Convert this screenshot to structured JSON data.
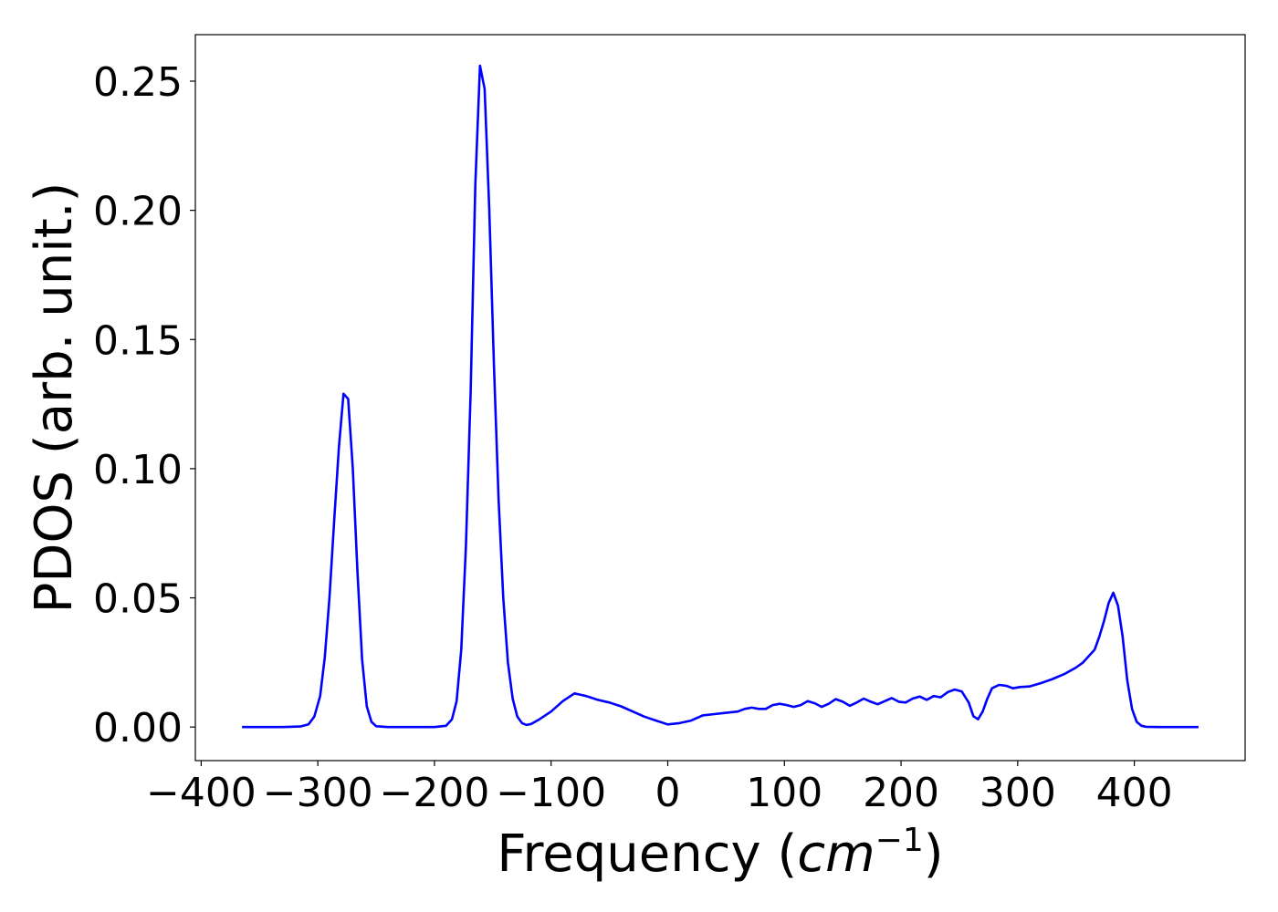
{
  "chart_data": {
    "type": "line",
    "title": "",
    "xlabel": "Frequency (",
    "xlabel_italic": "cm",
    "xlabel_sup": "−1",
    "xlabel_close": ")",
    "ylabel": "PDOS (arb. unit.)",
    "xlim": [
      -405,
      495
    ],
    "ylim": [
      -0.013,
      0.268
    ],
    "xticks": [
      -400,
      -300,
      -200,
      -100,
      0,
      100,
      200,
      300,
      400
    ],
    "xtick_labels": [
      "−400",
      "−300",
      "−200",
      "−100",
      "0",
      "100",
      "200",
      "300",
      "400"
    ],
    "yticks": [
      0.0,
      0.05,
      0.1,
      0.15,
      0.2,
      0.25
    ],
    "ytick_labels": [
      "0.00",
      "0.05",
      "0.10",
      "0.15",
      "0.20",
      "0.25"
    ],
    "grid": false,
    "series": [
      {
        "color": "#0000ff",
        "x": [
          -365,
          -330,
          -315,
          -308,
          -303,
          -298,
          -294,
          -290,
          -286,
          -282,
          -278,
          -274,
          -270,
          -266,
          -262,
          -258,
          -254,
          -250,
          -240,
          -220,
          -200,
          -190,
          -185,
          -181,
          -177,
          -173,
          -169,
          -165,
          -161,
          -157,
          -153,
          -149,
          -145,
          -141,
          -137,
          -133,
          -129,
          -125,
          -121,
          -117,
          -110,
          -100,
          -90,
          -80,
          -70,
          -60,
          -50,
          -40,
          -30,
          -20,
          -10,
          0,
          10,
          20,
          30,
          40,
          50,
          60,
          66,
          72,
          78,
          84,
          90,
          96,
          102,
          108,
          114,
          120,
          126,
          132,
          138,
          144,
          150,
          156,
          162,
          168,
          174,
          180,
          186,
          192,
          198,
          204,
          210,
          216,
          222,
          228,
          234,
          240,
          246,
          252,
          258,
          262,
          266,
          270,
          274,
          278,
          284,
          290,
          296,
          302,
          310,
          320,
          330,
          340,
          350,
          356,
          362,
          366,
          370,
          374,
          378,
          382,
          386,
          390,
          394,
          398,
          402,
          406,
          410,
          420,
          440,
          455
        ],
        "values": [
          0.0,
          0.0,
          0.0002,
          0.001,
          0.004,
          0.012,
          0.027,
          0.05,
          0.08,
          0.108,
          0.129,
          0.127,
          0.1,
          0.06,
          0.026,
          0.008,
          0.002,
          0.0003,
          0.0,
          0.0,
          0.0,
          0.0005,
          0.003,
          0.01,
          0.03,
          0.07,
          0.13,
          0.21,
          0.256,
          0.247,
          0.2,
          0.14,
          0.088,
          0.05,
          0.025,
          0.011,
          0.004,
          0.0015,
          0.0008,
          0.0012,
          0.003,
          0.006,
          0.01,
          0.013,
          0.012,
          0.0105,
          0.0095,
          0.008,
          0.006,
          0.004,
          0.0025,
          0.001,
          0.0015,
          0.0025,
          0.0045,
          0.005,
          0.0055,
          0.006,
          0.007,
          0.0075,
          0.007,
          0.007,
          0.0085,
          0.009,
          0.0085,
          0.0078,
          0.0085,
          0.01,
          0.0092,
          0.0078,
          0.009,
          0.0108,
          0.0098,
          0.0082,
          0.0095,
          0.011,
          0.0098,
          0.0088,
          0.01,
          0.0112,
          0.0098,
          0.0095,
          0.011,
          0.0118,
          0.0105,
          0.012,
          0.0115,
          0.0135,
          0.0145,
          0.0138,
          0.0095,
          0.0042,
          0.003,
          0.006,
          0.011,
          0.015,
          0.0163,
          0.016,
          0.015,
          0.0155,
          0.0157,
          0.017,
          0.0186,
          0.0205,
          0.023,
          0.025,
          0.028,
          0.03,
          0.035,
          0.041,
          0.048,
          0.052,
          0.047,
          0.035,
          0.018,
          0.007,
          0.002,
          0.0005,
          0.0001,
          0.0,
          0.0,
          0.0
        ]
      }
    ]
  }
}
